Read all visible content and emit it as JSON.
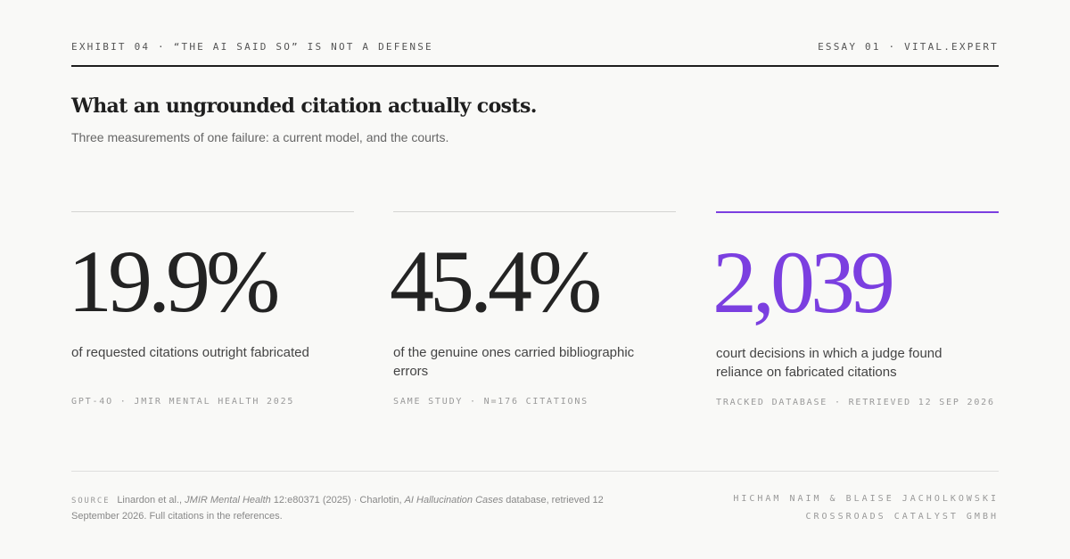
{
  "header": {
    "left": "EXHIBIT 04 · “THE AI SAID SO” IS NOT A DEFENSE",
    "right": "ESSAY 01 · VITAL.EXPERT"
  },
  "title": "What an ungrounded citation actually costs.",
  "subtitle": "Three measurements of one failure: a current model, and the courts.",
  "stats": [
    {
      "value": "19.9%",
      "description": "of requested citations outright fabricated",
      "source": "GPT-4O · JMIR MENTAL HEALTH 2025"
    },
    {
      "value": "45.4%",
      "description": "of the genuine ones carried bibliographic errors",
      "source": "SAME STUDY · N=176 CITATIONS"
    },
    {
      "value": "2,039",
      "description": "court decisions in which a judge found reliance on fabricated citations",
      "source": "TRACKED DATABASE · RETRIEVED 12 SEP 2026"
    }
  ],
  "footer": {
    "source_label": "SOURCE",
    "source_part1": "Linardon et al., ",
    "source_journal": "JMIR Mental Health",
    "source_part2": " 12:e80371 (2025) · Charlotin, ",
    "source_db": "AI Hallucination Cases",
    "source_part3": " database, retrieved 12 September 2026. Full citations in the references.",
    "credit_line1": "HICHAM NAIM & BLAISE JACHOLKOWSKI",
    "credit_line2": "CROSSROADS CATALYST GMBH"
  },
  "colors": {
    "accent": "#7b3fe0",
    "text": "#232323",
    "background": "#f9f9f7"
  }
}
